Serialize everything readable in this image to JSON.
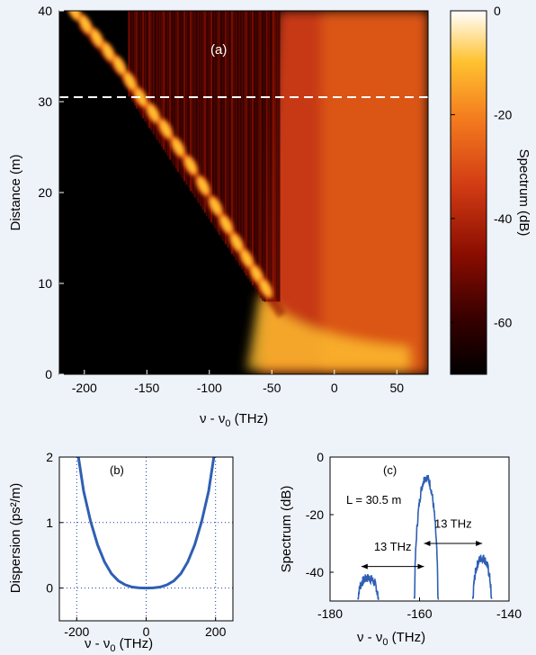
{
  "chart_data": [
    {
      "type": "heatmap",
      "panel_label": "(a)",
      "xlabel_main": "ν - ν",
      "xlabel_sub": "0",
      "xlabel_unit": " (THz)",
      "ylabel": "Distance (m)",
      "colorbar_label": "Spectrum (dB)",
      "xlim": [
        -220,
        75
      ],
      "ylim": [
        0,
        40
      ],
      "x_ticks": [
        -200,
        -150,
        -100,
        -50,
        0,
        50
      ],
      "y_ticks": [
        0,
        10,
        20,
        30,
        40
      ],
      "colorbar_range": [
        -70,
        0
      ],
      "colorbar_ticks": [
        0,
        -20,
        -40,
        -60
      ],
      "dashed_line_distance": 30.5,
      "soliton_track": [
        [
          -208,
          40
        ],
        [
          -190,
          37
        ],
        [
          -172,
          34
        ],
        [
          -155,
          30.5
        ],
        [
          -135,
          27
        ],
        [
          -115,
          23
        ],
        [
          -95,
          18.5
        ],
        [
          -78,
          14.5
        ],
        [
          -62,
          11
        ],
        [
          -48,
          8
        ]
      ],
      "colormap": [
        "#000000",
        "#3a0000",
        "#8a0d00",
        "#d23c14",
        "#f37a1e",
        "#ffc230",
        "#ffffff"
      ]
    },
    {
      "type": "line",
      "panel_label": "(b)",
      "xlabel_main": "ν - ν",
      "xlabel_sub": "0",
      "xlabel_unit": " (THz)",
      "ylabel": "Dispersion (ps²/m)",
      "xlim": [
        -250,
        250
      ],
      "ylim": [
        -0.5,
        2
      ],
      "x_ticks": [
        -200,
        0,
        200
      ],
      "y_ticks": [
        0,
        1,
        2
      ],
      "grid": "dotted",
      "series": [
        {
          "color": "#2f5fb3",
          "x": [
            -195,
            -180,
            -160,
            -140,
            -120,
            -100,
            -80,
            -60,
            -40,
            -20,
            0,
            20,
            40,
            60,
            80,
            100,
            120,
            140,
            160,
            180,
            195
          ],
          "y": [
            2.0,
            1.48,
            1.02,
            0.66,
            0.4,
            0.22,
            0.11,
            0.05,
            0.015,
            0.003,
            0,
            0.003,
            0.015,
            0.05,
            0.11,
            0.22,
            0.4,
            0.66,
            1.02,
            1.48,
            2.0
          ]
        }
      ]
    },
    {
      "type": "line",
      "panel_label": "(c)",
      "xlabel_main": "ν - ν",
      "xlabel_sub": "0",
      "xlabel_unit": " (THz)",
      "ylabel": "Spectrum (dB)",
      "xlim": [
        -180,
        -140
      ],
      "ylim": [
        -50,
        0
      ],
      "x_ticks": [
        -180,
        -160,
        -140
      ],
      "y_ticks": [
        0,
        -20,
        -40
      ],
      "annotation": "L = 30.5 m",
      "arrow_labels": [
        "13 THz",
        "13 THz"
      ],
      "arrows": [
        [
          -173,
          -159
        ],
        [
          -159,
          -146
        ]
      ],
      "series": [
        {
          "color": "#2f5fb3",
          "peaks": [
            {
              "center": -171.5,
              "peak": -42,
              "width": 2.2,
              "floor": -49
            },
            {
              "center": -158.5,
              "peak": -7,
              "width": 2.6,
              "floor": -49
            },
            {
              "center": -146.0,
              "peak": -35,
              "width": 2.0,
              "floor": -49
            }
          ]
        }
      ]
    }
  ]
}
